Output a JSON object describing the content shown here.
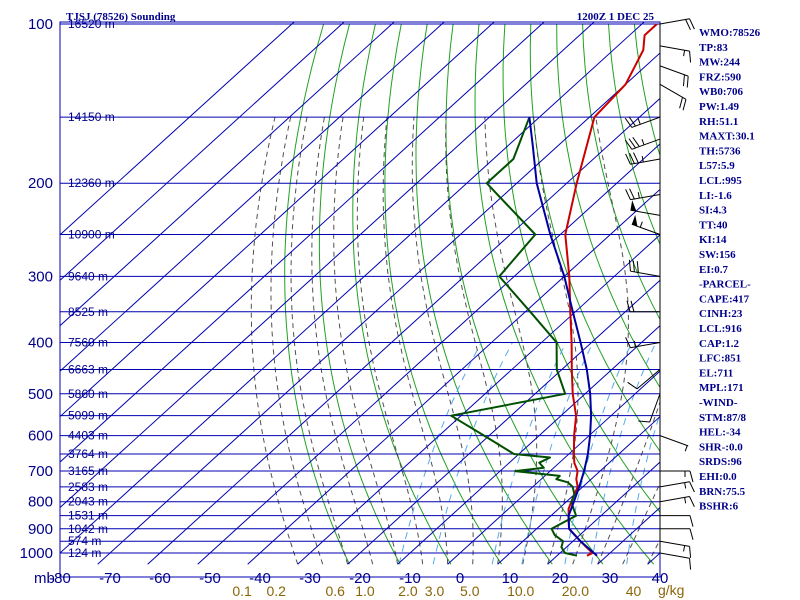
{
  "header": {
    "station": "TJSJ (78526) Sounding",
    "time": "1200Z  1 DEC 25"
  },
  "units": {
    "pressure": "mb",
    "mixing_ratio": "g/kg"
  },
  "indices": [
    "WMO:78526",
    "TP:83",
    "MW:244",
    "FRZ:590",
    "WB0:706",
    "PW:1.49",
    "RH:51.1",
    "MAXT:30.1",
    "TH:5736",
    "L57:5.9",
    "LCL:995",
    "LI:-1.6",
    "SI:4.3",
    "TT:40",
    "KI:14",
    "SW:156",
    "EI:0.7",
    "-PARCEL-",
    "CAPE:417",
    "CINH:23",
    "LCL:916",
    "CAP:1.2",
    "LFC:851",
    "EL:711",
    "MPL:171",
    "-WIND-",
    "STM:87/8",
    "HEL:-34",
    "SHR-:0.0",
    "SRDS:96",
    "EHI:0.0",
    "BRN:75.5",
    "BSHR:6"
  ],
  "chart_data": {
    "type": "line",
    "title": "TJSJ (78526) Sounding",
    "subtitle": "1200Z  1 DEC 25",
    "xlabel": "",
    "ylabel": "mb",
    "pressure_levels": [
      100,
      200,
      300,
      400,
      500,
      600,
      700,
      800,
      900,
      1000
    ],
    "pressure_range": [
      1050,
      100
    ],
    "temperature_ticks": [
      -80,
      -70,
      -60,
      -50,
      -40,
      -30,
      -20,
      -10,
      0,
      10,
      20,
      30,
      40
    ],
    "temperature_range": [
      -80,
      40
    ],
    "height_labels": [
      {
        "p": 100,
        "label": "16520 m"
      },
      {
        "p": 150,
        "label": "14150 m"
      },
      {
        "p": 200,
        "label": "12360 m"
      },
      {
        "p": 250,
        "label": "10900 m"
      },
      {
        "p": 300,
        "label": "9640 m"
      },
      {
        "p": 350,
        "label": "8525 m"
      },
      {
        "p": 400,
        "label": "7560 m"
      },
      {
        "p": 450,
        "label": "6663 m"
      },
      {
        "p": 500,
        "label": "5860 m"
      },
      {
        "p": 550,
        "label": "5099 m"
      },
      {
        "p": 600,
        "label": "4403 m"
      },
      {
        "p": 650,
        "label": "3764 m"
      },
      {
        "p": 700,
        "label": "3165 m"
      },
      {
        "p": 750,
        "label": "2583 m"
      },
      {
        "p": 800,
        "label": "2043 m"
      },
      {
        "p": 850,
        "label": "1531 m"
      },
      {
        "p": 900,
        "label": "1042 m"
      },
      {
        "p": 950,
        "label": "574 m"
      },
      {
        "p": 1000,
        "label": "124 m"
      }
    ],
    "mixing_ratio_labels": [
      {
        "w": 0.1,
        "label": "0.1"
      },
      {
        "w": 0.2,
        "label": "0.2"
      },
      {
        "w": 0.6,
        "label": "0.6"
      },
      {
        "w": 1.0,
        "label": "1.0"
      },
      {
        "w": 2.0,
        "label": "2.0"
      },
      {
        "w": 3.0,
        "label": "3.0"
      },
      {
        "w": 5.0,
        "label": "5.0"
      },
      {
        "w": 10.0,
        "label": "10.0"
      },
      {
        "w": 20.0,
        "label": "20.0"
      },
      {
        "w": 40.0,
        "label": "40"
      }
    ],
    "series": [
      {
        "color": "#cc0000",
        "p": [
          1012,
          1000,
          975,
          950,
          925,
          900,
          875,
          850,
          825,
          800,
          775,
          750,
          725,
          700,
          675,
          650,
          600,
          550,
          500,
          450,
          400,
          350,
          300,
          250,
          200,
          150,
          130,
          112,
          105,
          100
        ],
        "t": [
          26,
          26.5,
          24,
          21.5,
          19,
          16.5,
          15,
          13.5,
          12,
          11,
          10,
          9,
          7,
          5.5,
          3,
          1,
          -3,
          -7,
          -12.5,
          -18,
          -24,
          -31,
          -39,
          -49,
          -58,
          -69,
          -70,
          -74,
          -77,
          -77
        ]
      },
      {
        "color": "#005000",
        "p": [
          1012,
          1000,
          975,
          950,
          925,
          900,
          875,
          850,
          825,
          800,
          775,
          750,
          735,
          725,
          715,
          700,
          690,
          675,
          660,
          650,
          600,
          550,
          500,
          450,
          400,
          350,
          300,
          250,
          200,
          180,
          150
        ],
        "t": [
          24,
          21,
          19,
          18,
          15,
          13,
          14,
          15,
          13,
          11,
          10,
          8,
          6,
          3,
          3,
          -7,
          -2,
          -4,
          -3,
          -11,
          -21,
          -32,
          -14,
          -21,
          -27,
          -39,
          -53,
          -55,
          -76,
          -76,
          -82
        ]
      },
      {
        "color": "#0000a0",
        "p": [
          1012,
          950,
          900,
          850,
          800,
          750,
          700,
          650,
          600,
          550,
          500,
          450,
          400,
          350,
          300,
          250,
          200,
          170,
          150
        ],
        "t": [
          28,
          21.5,
          16.5,
          13.5,
          11.5,
          9.3,
          6.8,
          3.8,
          0.2,
          -4,
          -9,
          -15,
          -22.2,
          -30.5,
          -40,
          -52,
          -66,
          -75,
          -82
        ]
      }
    ],
    "wind_barbs": [
      {
        "p": 100,
        "dir": 80,
        "spd": 20
      },
      {
        "p": 110,
        "dir": 100,
        "spd": 15
      },
      {
        "p": 120,
        "dir": 110,
        "spd": 20
      },
      {
        "p": 130,
        "dir": 120,
        "spd": 20
      },
      {
        "p": 150,
        "dir": 250,
        "spd": 25
      },
      {
        "p": 165,
        "dir": 250,
        "spd": 35
      },
      {
        "p": 180,
        "dir": 260,
        "spd": 35
      },
      {
        "p": 210,
        "dir": 260,
        "spd": 25
      },
      {
        "p": 230,
        "dir": 280,
        "spd": 50
      },
      {
        "p": 250,
        "dir": 290,
        "spd": 55
      },
      {
        "p": 300,
        "dir": 280,
        "spd": 30
      },
      {
        "p": 350,
        "dir": 270,
        "spd": 20
      },
      {
        "p": 400,
        "dir": 260,
        "spd": 15
      },
      {
        "p": 450,
        "dir": 230,
        "spd": 10
      },
      {
        "p": 500,
        "dir": 200,
        "spd": 10
      },
      {
        "p": 600,
        "dir": 110,
        "spd": 5
      },
      {
        "p": 700,
        "dir": 90,
        "spd": 15
      },
      {
        "p": 750,
        "dir": 80,
        "spd": 15
      },
      {
        "p": 800,
        "dir": 80,
        "spd": 15
      },
      {
        "p": 850,
        "dir": 90,
        "spd": 10
      },
      {
        "p": 900,
        "dir": 90,
        "spd": 10
      },
      {
        "p": 950,
        "dir": 100,
        "spd": 15
      },
      {
        "p": 1000,
        "dir": 100,
        "spd": 10
      }
    ]
  }
}
